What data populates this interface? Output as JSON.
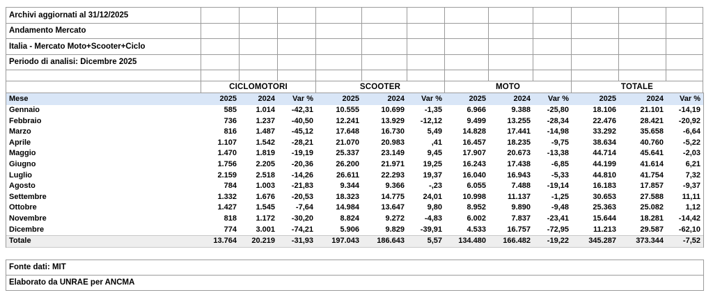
{
  "info_rows": [
    "Archivi aggiornati al 31/12/2025",
    "Andamento Mercato",
    "Italia - Mercato Moto+Scooter+Ciclo",
    "Periodo di analisi: Dicembre 2025"
  ],
  "groups": [
    "CICLOMOTORI",
    "SCOOTER",
    "MOTO",
    "TOTALE"
  ],
  "header": {
    "mese": "Mese",
    "cols": [
      "2025",
      "2024",
      "Var %"
    ]
  },
  "rows": [
    {
      "mese": "Gennaio",
      "values": [
        "585",
        "1.014",
        "-42,31",
        "10.555",
        "10.699",
        "-1,35",
        "6.966",
        "9.388",
        "-25,80",
        "18.106",
        "21.101",
        "-14,19"
      ]
    },
    {
      "mese": "Febbraio",
      "values": [
        "736",
        "1.237",
        "-40,50",
        "12.241",
        "13.929",
        "-12,12",
        "9.499",
        "13.255",
        "-28,34",
        "22.476",
        "28.421",
        "-20,92"
      ]
    },
    {
      "mese": "Marzo",
      "values": [
        "816",
        "1.487",
        "-45,12",
        "17.648",
        "16.730",
        "5,49",
        "14.828",
        "17.441",
        "-14,98",
        "33.292",
        "35.658",
        "-6,64"
      ]
    },
    {
      "mese": "Aprile",
      "values": [
        "1.107",
        "1.542",
        "-28,21",
        "21.070",
        "20.983",
        ",41",
        "16.457",
        "18.235",
        "-9,75",
        "38.634",
        "40.760",
        "-5,22"
      ]
    },
    {
      "mese": "Maggio",
      "values": [
        "1.470",
        "1.819",
        "-19,19",
        "25.337",
        "23.149",
        "9,45",
        "17.907",
        "20.673",
        "-13,38",
        "44.714",
        "45.641",
        "-2,03"
      ]
    },
    {
      "mese": "Giugno",
      "values": [
        "1.756",
        "2.205",
        "-20,36",
        "26.200",
        "21.971",
        "19,25",
        "16.243",
        "17.438",
        "-6,85",
        "44.199",
        "41.614",
        "6,21"
      ]
    },
    {
      "mese": "Luglio",
      "values": [
        "2.159",
        "2.518",
        "-14,26",
        "26.611",
        "22.293",
        "19,37",
        "16.040",
        "16.943",
        "-5,33",
        "44.810",
        "41.754",
        "7,32"
      ]
    },
    {
      "mese": "Agosto",
      "values": [
        "784",
        "1.003",
        "-21,83",
        "9.344",
        "9.366",
        "-,23",
        "6.055",
        "7.488",
        "-19,14",
        "16.183",
        "17.857",
        "-9,37"
      ]
    },
    {
      "mese": "Settembre",
      "values": [
        "1.332",
        "1.676",
        "-20,53",
        "18.323",
        "14.775",
        "24,01",
        "10.998",
        "11.137",
        "-1,25",
        "30.653",
        "27.588",
        "11,11"
      ]
    },
    {
      "mese": "Ottobre",
      "values": [
        "1.427",
        "1.545",
        "-7,64",
        "14.984",
        "13.647",
        "9,80",
        "8.952",
        "9.890",
        "-9,48",
        "25.363",
        "25.082",
        "1,12"
      ]
    },
    {
      "mese": "Novembre",
      "values": [
        "818",
        "1.172",
        "-30,20",
        "8.824",
        "9.272",
        "-4,83",
        "6.002",
        "7.837",
        "-23,41",
        "15.644",
        "18.281",
        "-14,42"
      ]
    },
    {
      "mese": "Dicembre",
      "values": [
        "774",
        "3.001",
        "-74,21",
        "5.906",
        "9.829",
        "-39,91",
        "4.533",
        "16.757",
        "-72,95",
        "11.213",
        "29.587",
        "-62,10"
      ]
    },
    {
      "mese": "Totale",
      "total": true,
      "values": [
        "13.764",
        "20.219",
        "-31,93",
        "197.043",
        "186.643",
        "5,57",
        "134.480",
        "166.482",
        "-19,22",
        "345.287",
        "373.344",
        "-7,52"
      ]
    }
  ],
  "footer_rows": [
    "Fonte dati: MIT",
    "Elaborato da UNRAE per ANCMA"
  ],
  "colors": {
    "header_blue": "#d9e6f7",
    "total_gray": "#eeeeee",
    "grid_border": "#9a9a9a"
  }
}
